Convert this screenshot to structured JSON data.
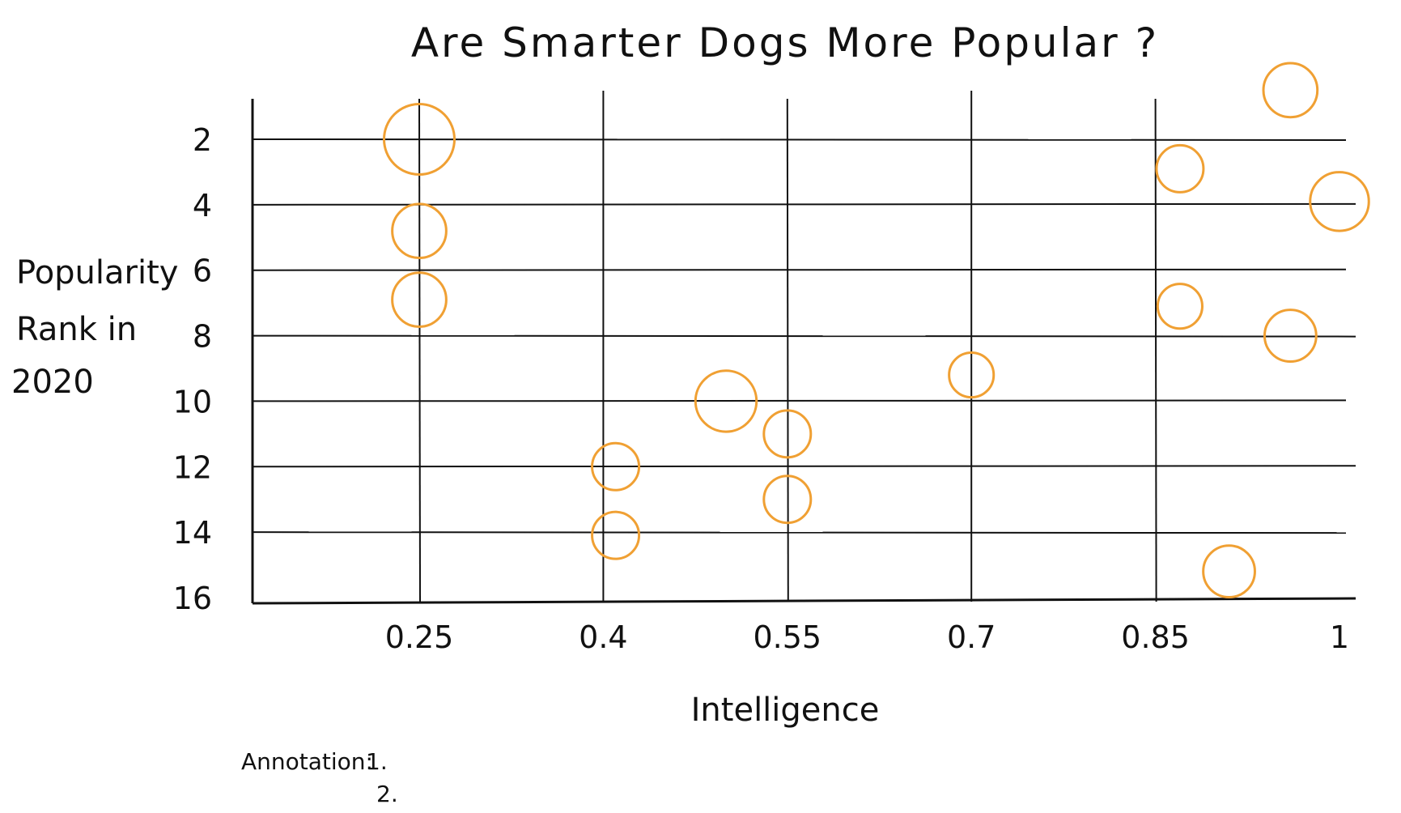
{
  "chart_data": {
    "type": "scatter",
    "title": "Are Smarter Dogs More Popular ?",
    "xlabel": "Intelligence",
    "ylabel_lines": [
      "Popularity",
      "Rank in",
      "2020"
    ],
    "x_ticks": [
      "0.25",
      "0.4",
      "0.55",
      "0.7",
      "0.85",
      "1"
    ],
    "x_tick_values": [
      0.25,
      0.4,
      0.55,
      0.7,
      0.85,
      1
    ],
    "y_ticks": [
      "2",
      "4",
      "6",
      "8",
      "10",
      "12",
      "14",
      "16"
    ],
    "y_tick_values": [
      2,
      4,
      6,
      8,
      10,
      12,
      14,
      16
    ],
    "xlim": [
      0.18,
      1.0
    ],
    "ylim": [
      0.5,
      16.5
    ],
    "y_inverted": true,
    "grid": true,
    "marker_color": "#f0a033",
    "points": [
      {
        "x": 0.25,
        "y": 2.0,
        "size": 1.5
      },
      {
        "x": 0.25,
        "y": 4.8,
        "size": 1.15
      },
      {
        "x": 0.25,
        "y": 6.9,
        "size": 1.15
      },
      {
        "x": 0.41,
        "y": 12.0,
        "size": 1.0
      },
      {
        "x": 0.41,
        "y": 14.1,
        "size": 1.0
      },
      {
        "x": 0.5,
        "y": 10.0,
        "size": 1.3
      },
      {
        "x": 0.55,
        "y": 11.0,
        "size": 1.0
      },
      {
        "x": 0.55,
        "y": 13.0,
        "size": 1.0
      },
      {
        "x": 0.7,
        "y": 9.2,
        "size": 0.95
      },
      {
        "x": 0.87,
        "y": 2.9,
        "size": 1.0
      },
      {
        "x": 0.87,
        "y": 7.1,
        "size": 0.95
      },
      {
        "x": 0.91,
        "y": 15.2,
        "size": 1.1
      },
      {
        "x": 0.96,
        "y": 0.5,
        "size": 1.15
      },
      {
        "x": 0.96,
        "y": 8.0,
        "size": 1.1
      },
      {
        "x": 1.0,
        "y": 3.9,
        "size": 1.25
      }
    ],
    "annotation": {
      "label": "Annotation:",
      "items": [
        "1.",
        "2."
      ]
    }
  }
}
